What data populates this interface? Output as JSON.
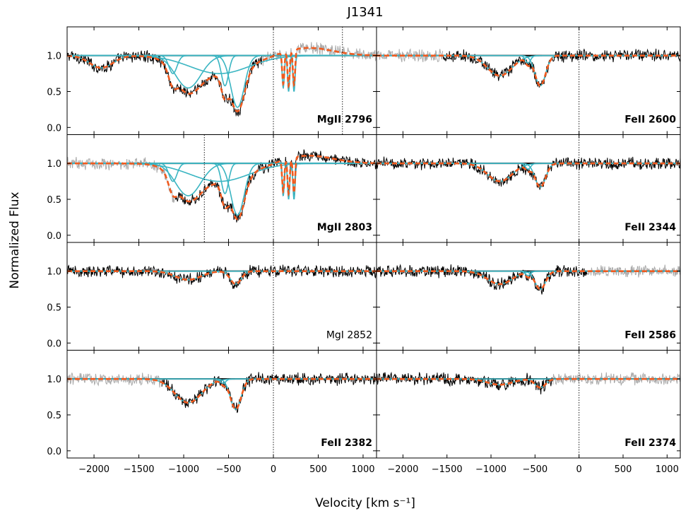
{
  "chart_data": {
    "type": "line",
    "title": "J1341",
    "xlabel": "Velocity [km s⁻¹]",
    "ylabel": "Normalized Flux",
    "xlim": [
      -2300,
      1150
    ],
    "ylim": [
      -0.1,
      1.4
    ],
    "xticks": [
      -2000,
      -1500,
      -1000,
      -500,
      0,
      500,
      1000
    ],
    "xtick_labels": [
      "−2000",
      "−1500",
      "−1000",
      "−500",
      "0",
      "500",
      "1000"
    ],
    "yticks": [
      0.0,
      0.5,
      1.0
    ],
    "ytick_labels": [
      "0.0",
      "0.5",
      "1.0"
    ],
    "grid": false,
    "series_legend": [
      {
        "role": "spectrum (fitted region)",
        "color": "#000000"
      },
      {
        "role": "spectrum (masked / blended)",
        "color": "#aaaaaa"
      },
      {
        "role": "individual components",
        "color": "#3ab5c2"
      },
      {
        "role": "total model fit",
        "color": "#f05a1e"
      },
      {
        "role": "continuum",
        "color": "#000000"
      }
    ],
    "panels": [
      {
        "row": 0,
        "col": 0,
        "label": "MgII 2796",
        "label_bold": true,
        "vlines": [
          0,
          770
        ],
        "grey_range": [
          -120,
          1150
        ],
        "components": [
          {
            "v": -1920,
            "depth": 0.17,
            "sigma": 130
          },
          {
            "v": -1120,
            "depth": 0.25,
            "sigma": 45
          },
          {
            "v": -950,
            "depth": 0.45,
            "sigma": 140
          },
          {
            "v": -600,
            "depth": 0.25,
            "sigma": 330
          },
          {
            "v": -540,
            "depth": 0.42,
            "sigma": 40
          },
          {
            "v": -400,
            "depth": 0.72,
            "sigma": 75
          },
          {
            "v": 110,
            "depth": 0.45,
            "sigma": 12
          },
          {
            "v": 170,
            "depth": 0.5,
            "sigma": 12
          },
          {
            "v": 230,
            "depth": 0.5,
            "sigma": 12
          }
        ],
        "emission": {
          "v": 380,
          "amp": 0.11,
          "sigma": 280
        }
      },
      {
        "row": 0,
        "col": 1,
        "label": "FeII 2600",
        "label_bold": true,
        "vlines": [
          0
        ],
        "grey_range": [
          -2300,
          -1550
        ],
        "components": [
          {
            "v": -900,
            "depth": 0.28,
            "sigma": 140
          },
          {
            "v": -580,
            "depth": 0.1,
            "sigma": 30
          },
          {
            "v": -440,
            "depth": 0.42,
            "sigma": 60
          }
        ]
      },
      {
        "row": 1,
        "col": 0,
        "label": "MgII 2803",
        "label_bold": true,
        "vlines": [
          0,
          -770
        ],
        "grey_range": [
          -2300,
          -1100
        ],
        "components": [
          {
            "v": -1120,
            "depth": 0.25,
            "sigma": 45
          },
          {
            "v": -950,
            "depth": 0.45,
            "sigma": 140
          },
          {
            "v": -600,
            "depth": 0.25,
            "sigma": 330
          },
          {
            "v": -540,
            "depth": 0.42,
            "sigma": 40
          },
          {
            "v": -400,
            "depth": 0.72,
            "sigma": 75
          },
          {
            "v": 110,
            "depth": 0.45,
            "sigma": 12
          },
          {
            "v": 170,
            "depth": 0.5,
            "sigma": 12
          },
          {
            "v": 230,
            "depth": 0.5,
            "sigma": 12
          }
        ],
        "emission": {
          "v": 380,
          "amp": 0.11,
          "sigma": 280
        }
      },
      {
        "row": 1,
        "col": 1,
        "label": "FeII 2344",
        "label_bold": true,
        "vlines": [
          0
        ],
        "grey_range": null,
        "components": [
          {
            "v": -900,
            "depth": 0.25,
            "sigma": 140
          },
          {
            "v": -580,
            "depth": 0.08,
            "sigma": 30
          },
          {
            "v": -440,
            "depth": 0.33,
            "sigma": 60
          }
        ]
      },
      {
        "row": 2,
        "col": 0,
        "label": "MgI 2852",
        "label_bold": false,
        "vlines": [
          0
        ],
        "grey_range": null,
        "components": [
          {
            "v": -950,
            "depth": 0.12,
            "sigma": 140
          },
          {
            "v": -420,
            "depth": 0.18,
            "sigma": 60
          }
        ]
      },
      {
        "row": 2,
        "col": 1,
        "label": "FeII 2586",
        "label_bold": true,
        "vlines": [
          0
        ],
        "grey_range": [
          100,
          1150
        ],
        "components": [
          {
            "v": -900,
            "depth": 0.18,
            "sigma": 140
          },
          {
            "v": -580,
            "depth": 0.06,
            "sigma": 30
          },
          {
            "v": -440,
            "depth": 0.25,
            "sigma": 60
          }
        ]
      },
      {
        "row": 3,
        "col": 0,
        "label": "FeII 2382",
        "label_bold": true,
        "vlines": [
          0
        ],
        "grey_range": [
          -2300,
          -1250
        ],
        "components": [
          {
            "v": -950,
            "depth": 0.33,
            "sigma": 150
          },
          {
            "v": -560,
            "depth": 0.06,
            "sigma": 30
          },
          {
            "v": -420,
            "depth": 0.42,
            "sigma": 60
          }
        ]
      },
      {
        "row": 3,
        "col": 1,
        "label": "FeII 2374",
        "label_bold": true,
        "vlines": [
          0
        ],
        "grey_range": [
          -300,
          1150
        ],
        "components": [
          {
            "v": -900,
            "depth": 0.08,
            "sigma": 140
          },
          {
            "v": -440,
            "depth": 0.12,
            "sigma": 60
          }
        ]
      }
    ]
  }
}
